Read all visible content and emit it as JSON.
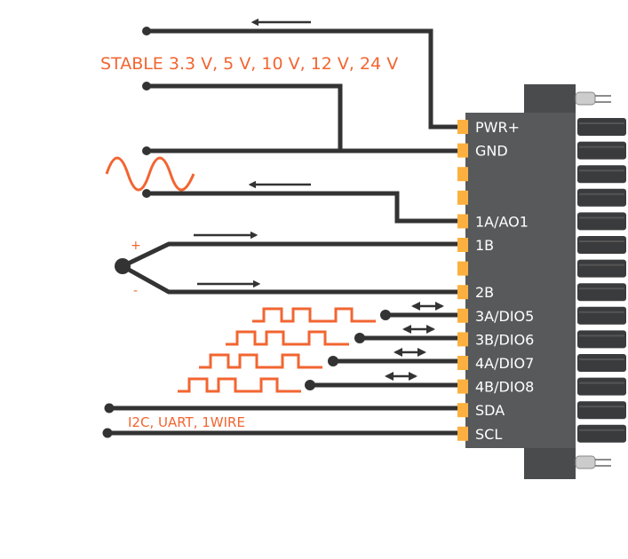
{
  "colors": {
    "wire": "#333333",
    "signal": "#f26531",
    "pin": "#fbb040",
    "body": "#58595b",
    "label": "#ffffff"
  },
  "power_note": "STABLE 3.3 V, 5 V, 10 V, 12 V, 24 V",
  "bus_note": "I2C, UART, 1WIRE",
  "thermocouple": {
    "plus": "+",
    "minus": "-"
  },
  "pins": [
    "PWR+",
    "GND",
    "",
    "",
    "1A/AO1",
    "1B",
    "",
    "2B",
    "3A/DIO5",
    "3B/DIO6",
    "4A/DIO7",
    "4B/DIO8",
    "SDA",
    "SCL"
  ]
}
